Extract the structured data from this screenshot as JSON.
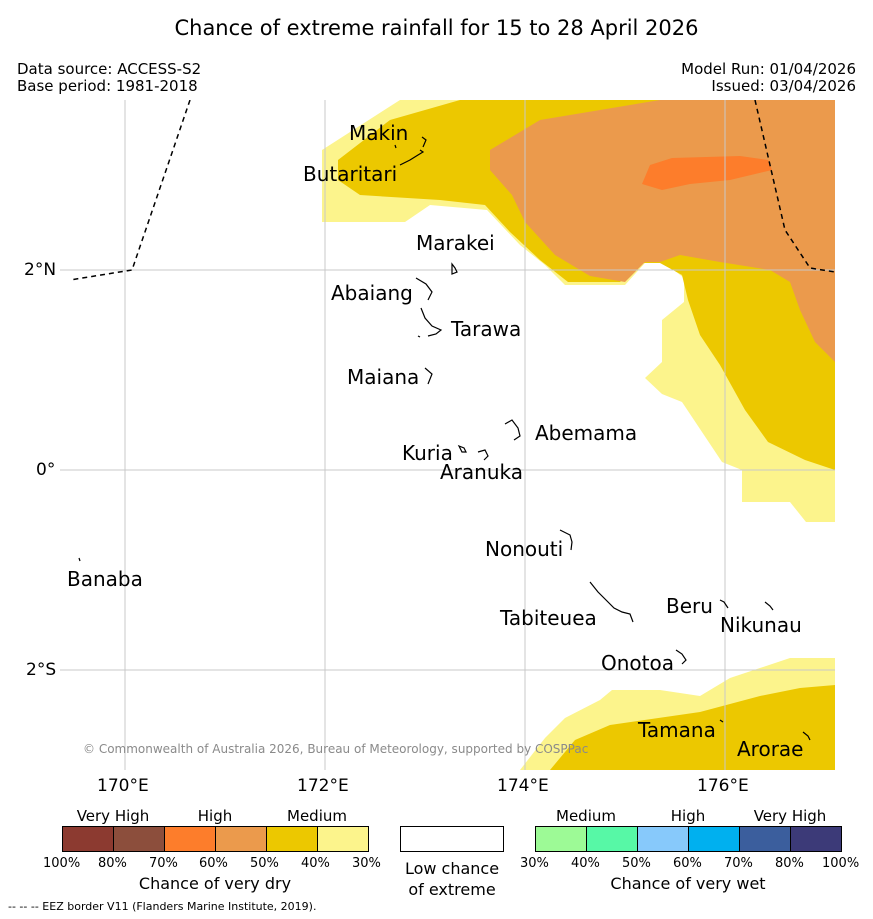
{
  "title": "Chance of extreme rainfall for 15 to 28 April 2026",
  "info": {
    "data_source": "Data source: ACCESS-S2",
    "base_period": "Base period: 1981-2018",
    "model_run": "Model Run: 01/04/2026",
    "issued": "Issued: 03/04/2026"
  },
  "map": {
    "lat_labels": [
      "2°N",
      "0°",
      "2°S"
    ],
    "lon_labels": [
      "170°E",
      "172°E",
      "174°E",
      "176°E"
    ],
    "copyright": "© Commonwealth of Australia 2026, Bureau of Meteorology, supported by COSPPac",
    "islands": [
      "Makin",
      "Butaritari",
      "Marakei",
      "Abaiang",
      "Tarawa",
      "Maiana",
      "Abemama",
      "Kuria",
      "Aranuka",
      "Banaba",
      "Nonouti",
      "Tabiteuea",
      "Beru",
      "Nikunau",
      "Onotoa",
      "Tamana",
      "Arorae"
    ]
  },
  "legend_dry": {
    "headers": [
      "Very High",
      "High",
      "Medium"
    ],
    "colors": [
      "#8c3a30",
      "#8c4e3c",
      "#fd7d2b",
      "#eb9a4c",
      "#ecc800",
      "#fcf48c"
    ],
    "ticks": [
      "100%",
      "80%",
      "70%",
      "60%",
      "50%",
      "40%",
      "30%"
    ],
    "caption": "Chance of very dry"
  },
  "legend_low": {
    "caption_line1": "Low chance",
    "caption_line2": "of extreme"
  },
  "legend_wet": {
    "headers": [
      "Medium",
      "High",
      "Very High"
    ],
    "colors": [
      "#9dfa96",
      "#57f8a6",
      "#87c9fb",
      "#00b0ef",
      "#3b5e9d",
      "#3c3a78"
    ],
    "ticks": [
      "30%",
      "40%",
      "50%",
      "60%",
      "70%",
      "80%",
      "100%"
    ],
    "caption": "Chance of very wet"
  },
  "footer": "--  --  -- EEZ border V11 (Flanders Marine Institute, 2019)."
}
